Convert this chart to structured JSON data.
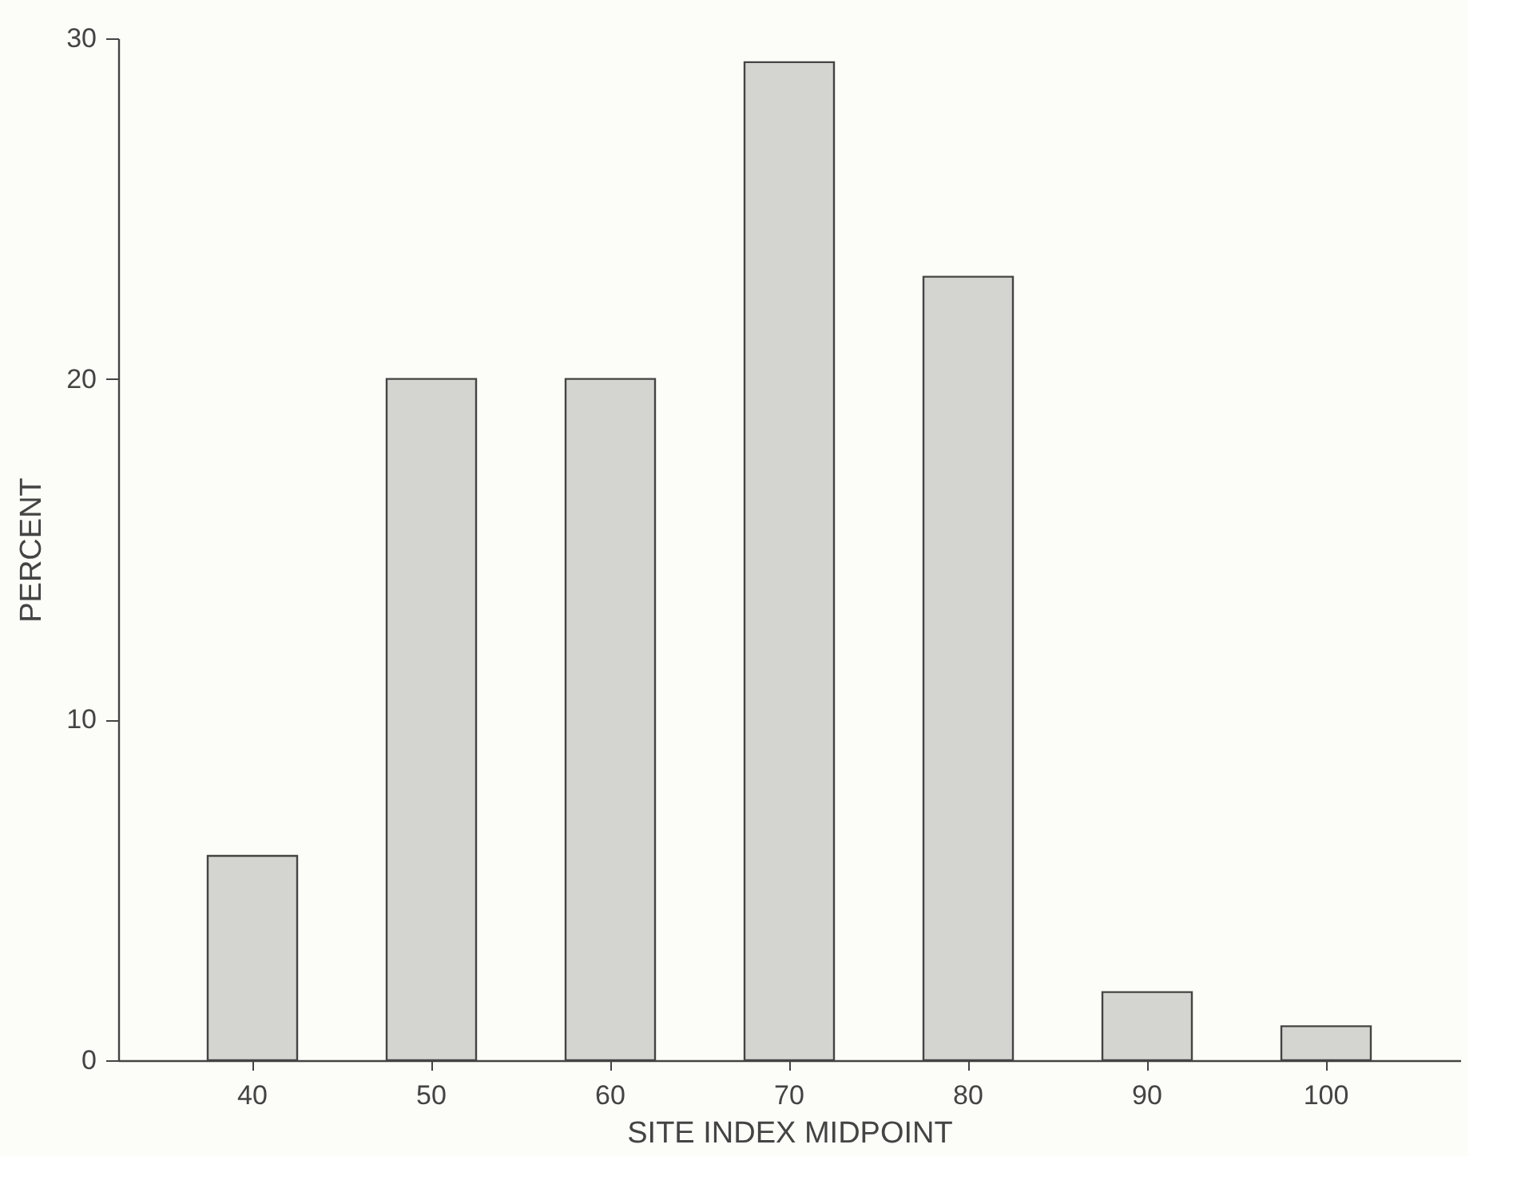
{
  "chart_data": {
    "type": "bar",
    "xlabel": "SITE INDEX MIDPOINT",
    "ylabel": "PERCENT",
    "categories": [
      "40",
      "50",
      "60",
      "70",
      "80",
      "90",
      "100"
    ],
    "values": [
      6,
      20,
      20,
      29.3,
      23,
      2,
      1
    ],
    "color": "#d4d4d0",
    "ylim": [
      0,
      30
    ],
    "yticks": [
      0,
      10,
      20,
      30
    ],
    "grid": false
  }
}
